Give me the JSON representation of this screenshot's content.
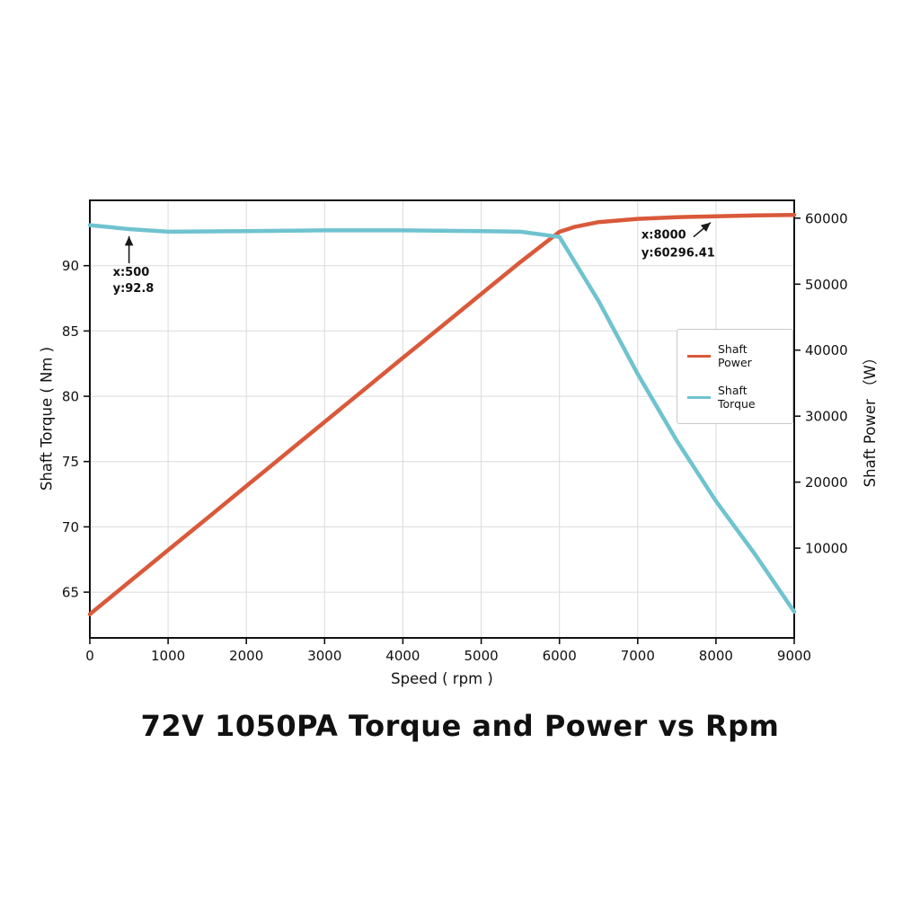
{
  "chart_data": {
    "type": "line",
    "title": "72V 1050PA Torque and Power vs Rpm",
    "grid": true,
    "x_axis": {
      "label": "Speed ( rpm )",
      "min": 0,
      "max": 9000,
      "ticks": [
        0,
        1000,
        2000,
        3000,
        4000,
        5000,
        6000,
        7000,
        8000,
        9000
      ]
    },
    "torque_axis": {
      "label": "Shaft Torque ( Nm )",
      "min": 61.5,
      "max": 95,
      "ticks": [
        65,
        70,
        75,
        80,
        85,
        90
      ]
    },
    "power_axis": {
      "label": "Shaft Power （W）",
      "min": -3600,
      "max": 62700,
      "ticks": [
        10000,
        20000,
        30000,
        40000,
        50000,
        60000
      ]
    },
    "legend": {
      "position": "right-center",
      "entries": [
        {
          "label": "Shaft Power",
          "color": "#d9593a"
        },
        {
          "label": "Shaft Torque",
          "color": "#6fc3cf"
        }
      ]
    },
    "series": [
      {
        "name": "Shaft Power",
        "axis": "power",
        "color": "#d9593a",
        "x": [
          0,
          500,
          1000,
          1500,
          2000,
          2500,
          3000,
          3500,
          4000,
          4500,
          5000,
          5500,
          6000,
          6200,
          6500,
          7000,
          7500,
          8000,
          8500,
          9000
        ],
        "y": [
          0,
          4859,
          9697,
          14548,
          19406,
          24269,
          29124,
          33975,
          38830,
          43660,
          48516,
          53334,
          57930,
          58700,
          59400,
          59900,
          60150,
          60296.41,
          60420,
          60500
        ]
      },
      {
        "name": "Shaft Torque",
        "axis": "torque",
        "color": "#6fc3cf",
        "x": [
          0,
          500,
          1000,
          2000,
          3000,
          4000,
          5000,
          5500,
          6000,
          6500,
          7000,
          7500,
          8000,
          8500,
          9000
        ],
        "y": [
          93.1,
          92.8,
          92.6,
          92.65,
          92.7,
          92.7,
          92.65,
          92.6,
          92.2,
          87.3,
          81.7,
          76.6,
          71.97,
          67.9,
          63.5
        ]
      }
    ],
    "annotations": [
      {
        "label_lines": [
          "x:500",
          "y:92.8"
        ],
        "x": 500,
        "y": 92.8,
        "axis": "torque"
      },
      {
        "label_lines": [
          "x:8000",
          "y:60296.41"
        ],
        "x": 8000,
        "y": 60296.41,
        "axis": "power"
      }
    ]
  }
}
